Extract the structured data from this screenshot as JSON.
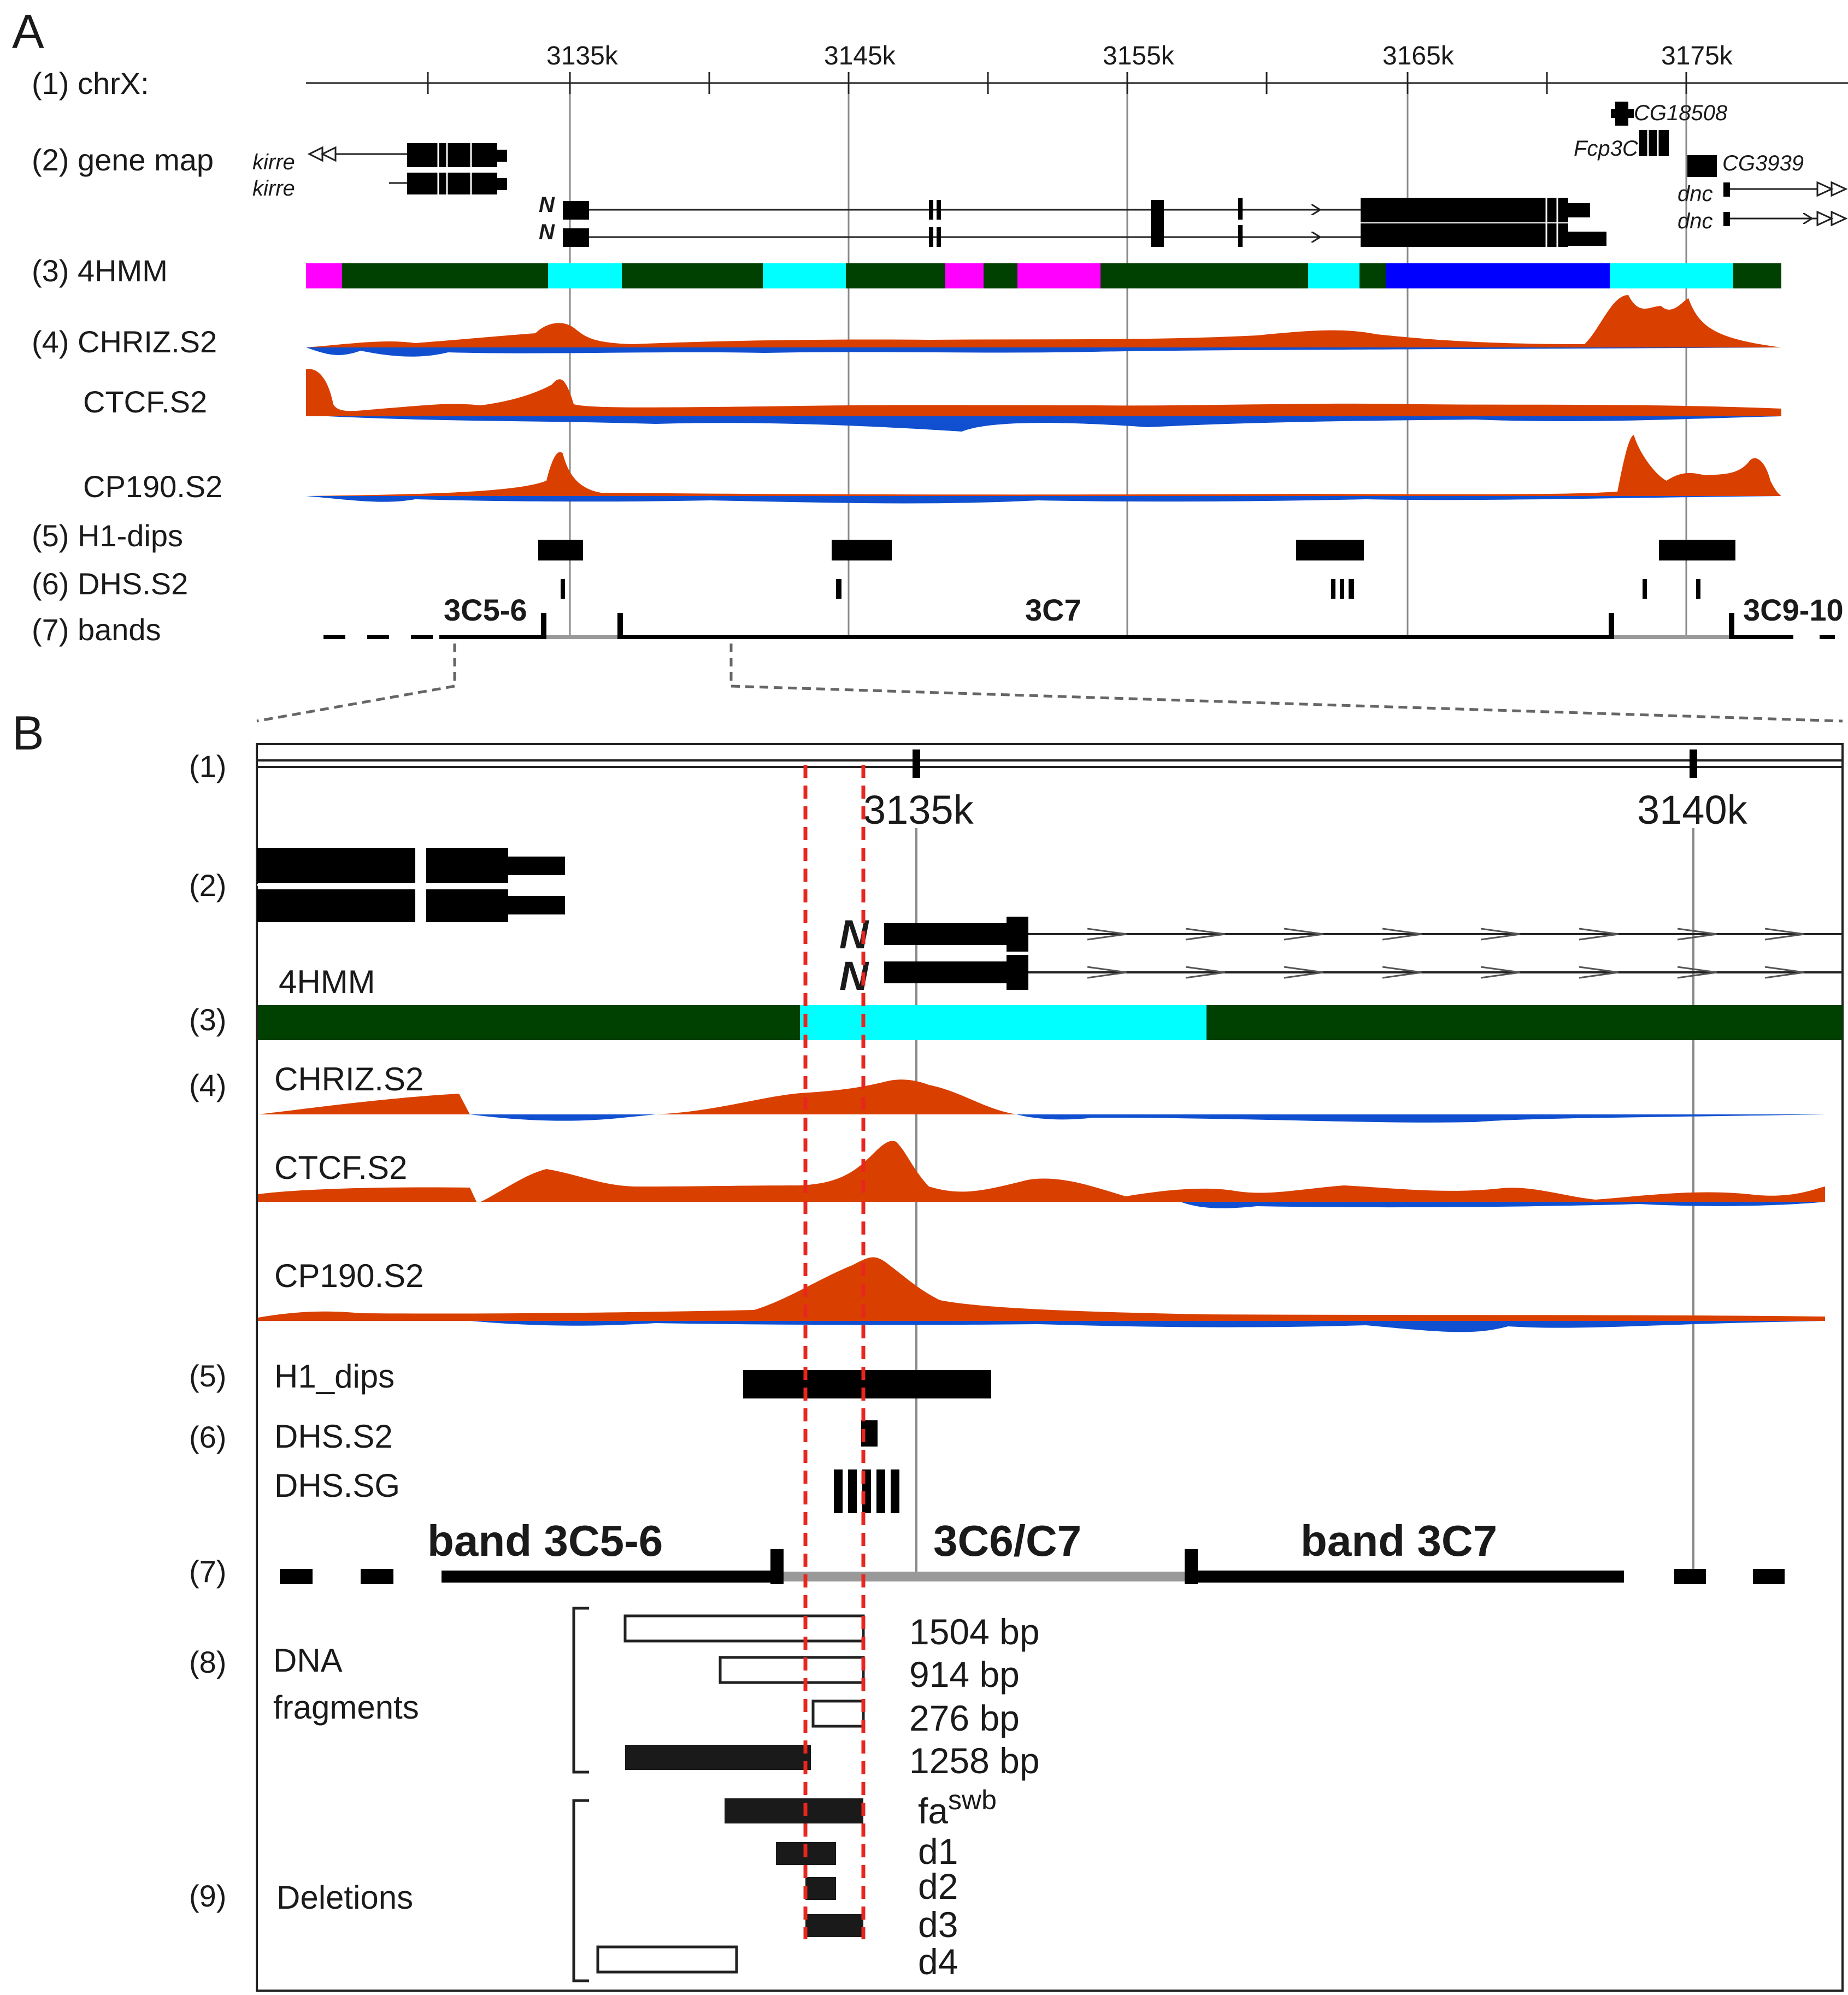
{
  "panels": {
    "a": "A",
    "b": "B"
  },
  "panel_a": {
    "row_labels": [
      "(1) chrX:",
      "(2) gene map",
      "(3) 4HMM",
      "(4) CHRIZ.S2",
      "CTCF.S2",
      "CP190.S2",
      "(5) H1-dips",
      "(6) DHS.S2",
      "(7) bands"
    ],
    "ticks": [
      "3135k",
      "3145k",
      "3155k",
      "3165k",
      "3175k"
    ],
    "genes": {
      "kirre_1": "kirre",
      "kirre_2": "kirre",
      "n_1": "N",
      "n_2": "N",
      "cg18508": "CG18508",
      "fcp3c": "Fcp3C",
      "cg3939": "CG3939",
      "dnc_1": "dnc",
      "dnc_2": "dnc"
    },
    "bands": [
      "3C5-6",
      "3C7",
      "3C9-10"
    ]
  },
  "panel_b": {
    "row_numbers": [
      "(1)",
      "(2)",
      "(3)",
      "(4)",
      "(5)",
      "(6)",
      "(7)",
      "(8)",
      "(9)"
    ],
    "ticks": [
      "3135k",
      "3140k"
    ],
    "genes": {
      "n_1": "N",
      "n_2": "N"
    },
    "track_labels": [
      "4HMM",
      "CHRIZ.S2",
      "CTCF.S2",
      "CP190.S2",
      "H1_dips",
      "DHS.S2",
      "DHS.SG"
    ],
    "bands": [
      "band 3C5-6",
      "3C6/C7",
      "band 3C7"
    ],
    "dna_fragments": {
      "label_line1": "DNA",
      "label_line2": "fragments",
      "items": [
        "1504 bp",
        "914 bp",
        "276 bp",
        "1258 bp"
      ]
    },
    "deletions": {
      "label": "Deletions",
      "items": [
        {
          "base": "fa",
          "sup": "swb"
        },
        {
          "base": "d1"
        },
        {
          "base": "d2"
        },
        {
          "base": "d3"
        },
        {
          "base": "d4"
        }
      ]
    }
  },
  "colors": {
    "dark_green": "#004000",
    "cyan": "#00ffff",
    "magenta": "#ff00ff",
    "blue": "#0000ff",
    "signal_positive": "#d94000",
    "signal_negative": "#1050d0",
    "highlight_dash": "#e8261f",
    "grey_band": "#999999"
  }
}
